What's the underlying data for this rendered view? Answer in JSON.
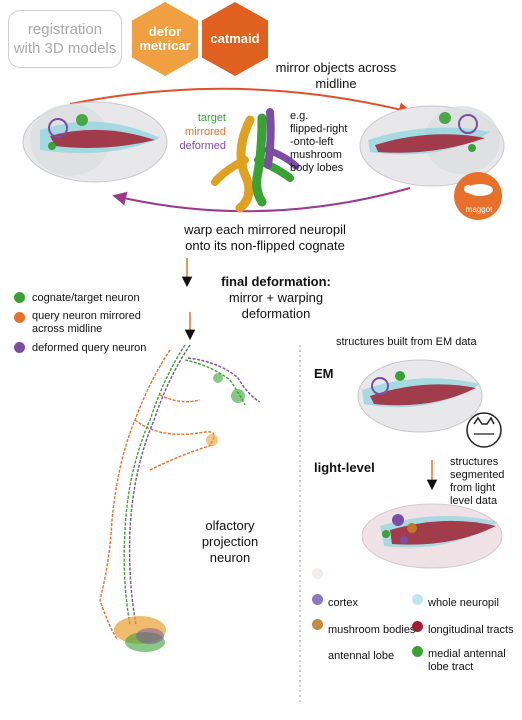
{
  "header": {
    "registration_line1": "registration",
    "registration_line2": "with 3D models",
    "defor_line1": "defor",
    "defor_line2": "metricar",
    "catmaid": "catmaid"
  },
  "top": {
    "mirror_line1": "mirror objects across",
    "mirror_line2": "midline",
    "lobes_legend": {
      "target": "target",
      "mirrored": "mirrored",
      "deformed": "deformed"
    },
    "eg_lines": [
      "e.g.",
      "flipped-right",
      "-onto-left",
      "mushroom",
      "body lobes"
    ],
    "maggot_label": "maggot",
    "warp_line1": "warp each mirrored neuropil",
    "warp_line2": "onto its non-flipped cognate",
    "final_line1": "final deformation:",
    "final_line2": "mirror + warping deformation"
  },
  "neuron_legend": {
    "cognate": "cognate/target neuron",
    "query_line1": "query neuron mirrored",
    "query_line2": "across midline",
    "deformed": "deformed query neuron"
  },
  "neuron_label": [
    "olfactory",
    "projection",
    "neuron"
  ],
  "right_panel": {
    "em_caption": "structures built from EM data",
    "em_label": "EM",
    "light_label": "light-level",
    "light_caption": [
      "structures",
      "segmented",
      "from light",
      "level data"
    ]
  },
  "region_legend": {
    "cortex": "cortex",
    "whole_neuropil": "whole neuropil",
    "mushroom_bodies": "mushroom bodies",
    "longitudinal_tracts": "longitudinal tracts",
    "antennal_lobe": "antennal lobe",
    "medial_line1": "medial antennal",
    "medial_line2": "lobe tract"
  },
  "colors": {
    "target_green": "#3aa135",
    "mirrored_orange": "#e8702a",
    "deformed_purple": "#7b4ea3",
    "hex_orange": "#f0a040",
    "hex_dark_orange": "#e06020",
    "arrow_red": "#e0502a",
    "arrow_purple": "#9b3a8c"
  }
}
